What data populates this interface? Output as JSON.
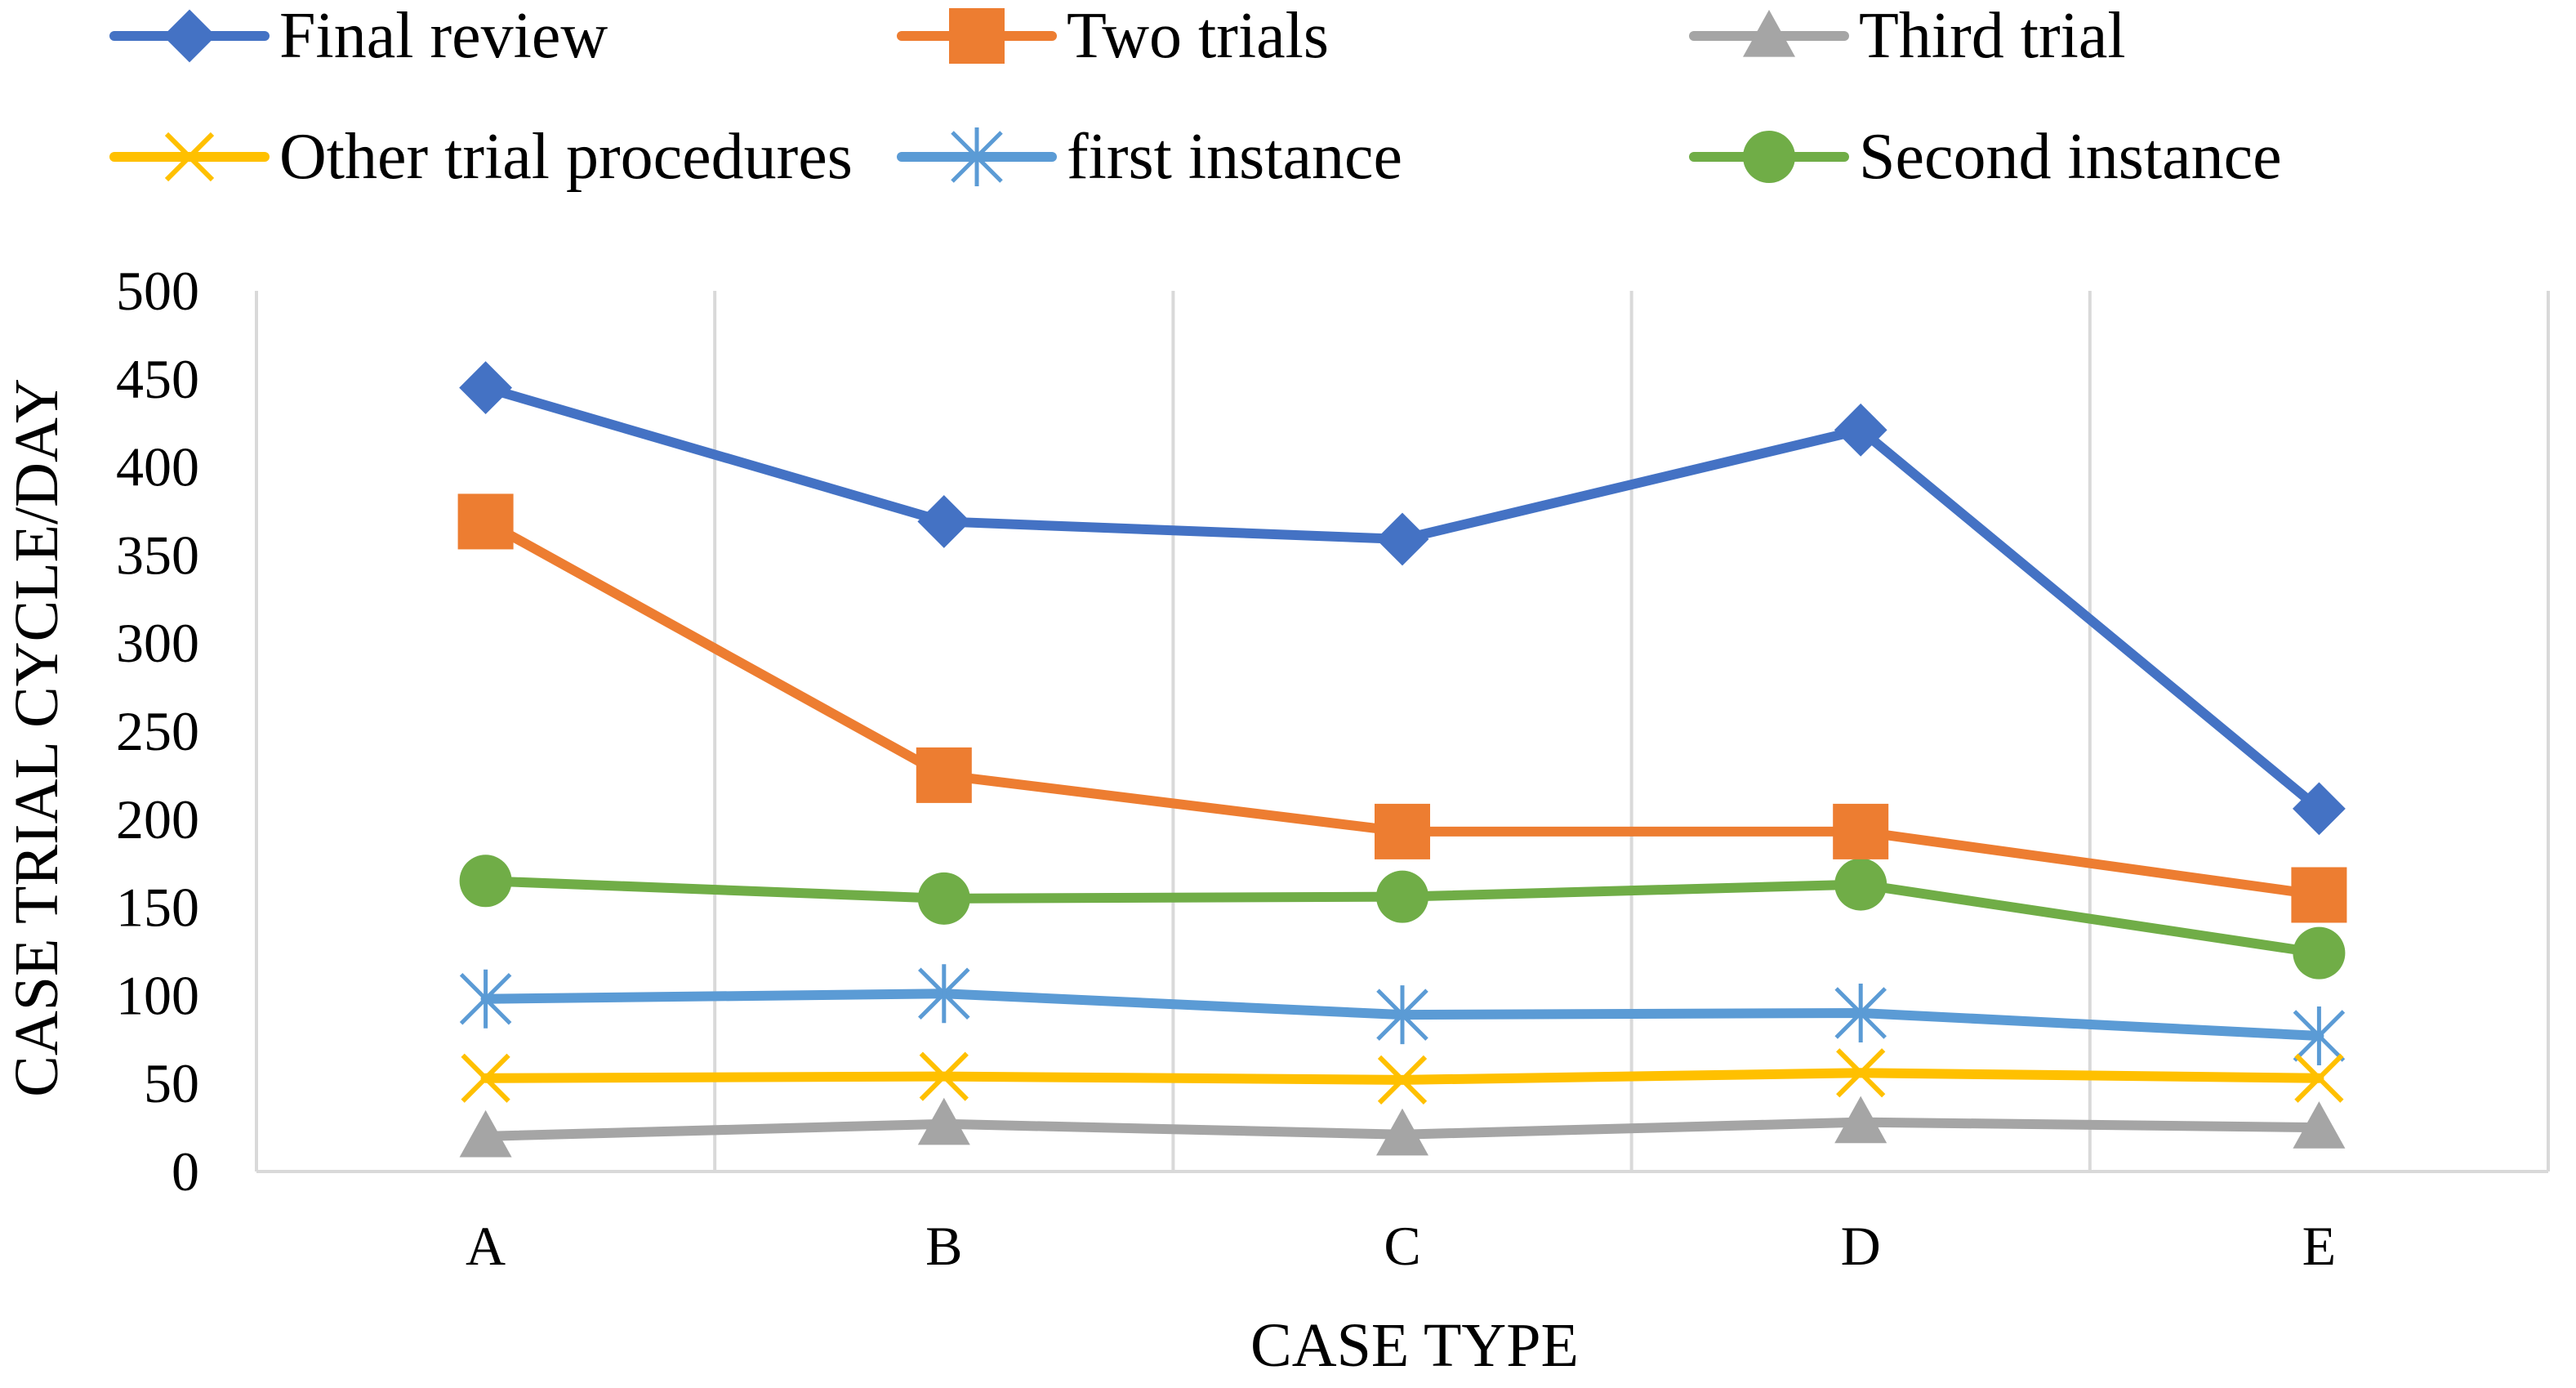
{
  "chart_data": {
    "type": "line",
    "title": "",
    "xlabel": "CASE TYPE",
    "ylabel": "CASE TRIAL CYCLE/DAY",
    "ylim": [
      0,
      500
    ],
    "yticks": [
      0,
      50,
      100,
      150,
      200,
      250,
      300,
      350,
      400,
      450,
      500
    ],
    "ytick_labels": [
      "0",
      "50",
      "100",
      "150",
      "200",
      "250",
      "300",
      "350",
      "400",
      "450",
      "500"
    ],
    "categories": [
      "A",
      "B",
      "C",
      "D",
      "E"
    ],
    "grid": "vertical",
    "legend": "top",
    "series": [
      {
        "name": "Final review",
        "color": "#4472C4",
        "marker": "diamond",
        "values": [
          445,
          369,
          359,
          421,
          206
        ]
      },
      {
        "name": "Two trials",
        "color": "#ED7D31",
        "marker": "square",
        "values": [
          369,
          225,
          193,
          193,
          157
        ]
      },
      {
        "name": "Third trial",
        "color": "#A5A5A5",
        "marker": "triangle",
        "values": [
          20,
          27,
          21,
          28,
          25
        ]
      },
      {
        "name": "Other trial procedures",
        "color": "#FFC000",
        "marker": "x",
        "values": [
          53,
          54,
          52,
          56,
          53
        ]
      },
      {
        "name": "first instance",
        "color": "#5B9BD5",
        "marker": "asterisk",
        "values": [
          98,
          101,
          89,
          90,
          77
        ]
      },
      {
        "name": "Second instance",
        "color": "#70AD47",
        "marker": "circle",
        "values": [
          165,
          155,
          156,
          163,
          124
        ]
      }
    ]
  }
}
